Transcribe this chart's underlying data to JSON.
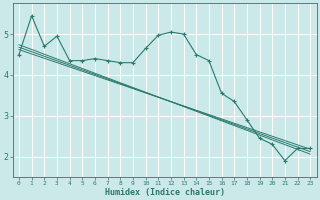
{
  "title": "",
  "xlabel": "Humidex (Indice chaleur)",
  "ylabel": "",
  "background_color": "#cce9e9",
  "line_color": "#2a7a6e",
  "grid_color": "#ffffff",
  "xlim": [
    -0.5,
    23.5
  ],
  "ylim": [
    1.5,
    5.75
  ],
  "yticks": [
    2,
    3,
    4,
    5
  ],
  "xticks": [
    0,
    1,
    2,
    3,
    4,
    5,
    6,
    7,
    8,
    9,
    10,
    11,
    12,
    13,
    14,
    15,
    16,
    17,
    18,
    19,
    20,
    21,
    22,
    23
  ],
  "xtick_labels": [
    "0",
    "1",
    "2",
    "3",
    "4",
    "5",
    "6",
    "7",
    "8",
    "9",
    "10",
    "11",
    "12",
    "13",
    "14",
    "15",
    "16",
    "17",
    "18",
    "19",
    "20",
    "21",
    "22",
    "23"
  ],
  "series": [
    {
      "x": [
        0,
        1,
        2,
        3,
        4,
        5,
        6,
        7,
        8,
        9,
        10,
        11,
        12,
        13,
        14,
        15,
        16,
        17,
        18,
        19,
        20,
        21,
        22,
        23
      ],
      "y": [
        4.5,
        5.45,
        4.7,
        4.95,
        4.35,
        4.35,
        4.4,
        4.35,
        4.3,
        4.3,
        4.65,
        4.97,
        5.05,
        5.0,
        4.5,
        4.35,
        3.55,
        3.35,
        2.9,
        2.45,
        2.3,
        1.9,
        2.2,
        2.2
      ],
      "has_markers": true
    },
    {
      "x": [
        0,
        23
      ],
      "y": [
        4.62,
        2.18
      ],
      "has_markers": false
    },
    {
      "x": [
        0,
        23
      ],
      "y": [
        4.68,
        2.12
      ],
      "has_markers": false
    },
    {
      "x": [
        0,
        23
      ],
      "y": [
        4.74,
        2.06
      ],
      "has_markers": false
    }
  ]
}
